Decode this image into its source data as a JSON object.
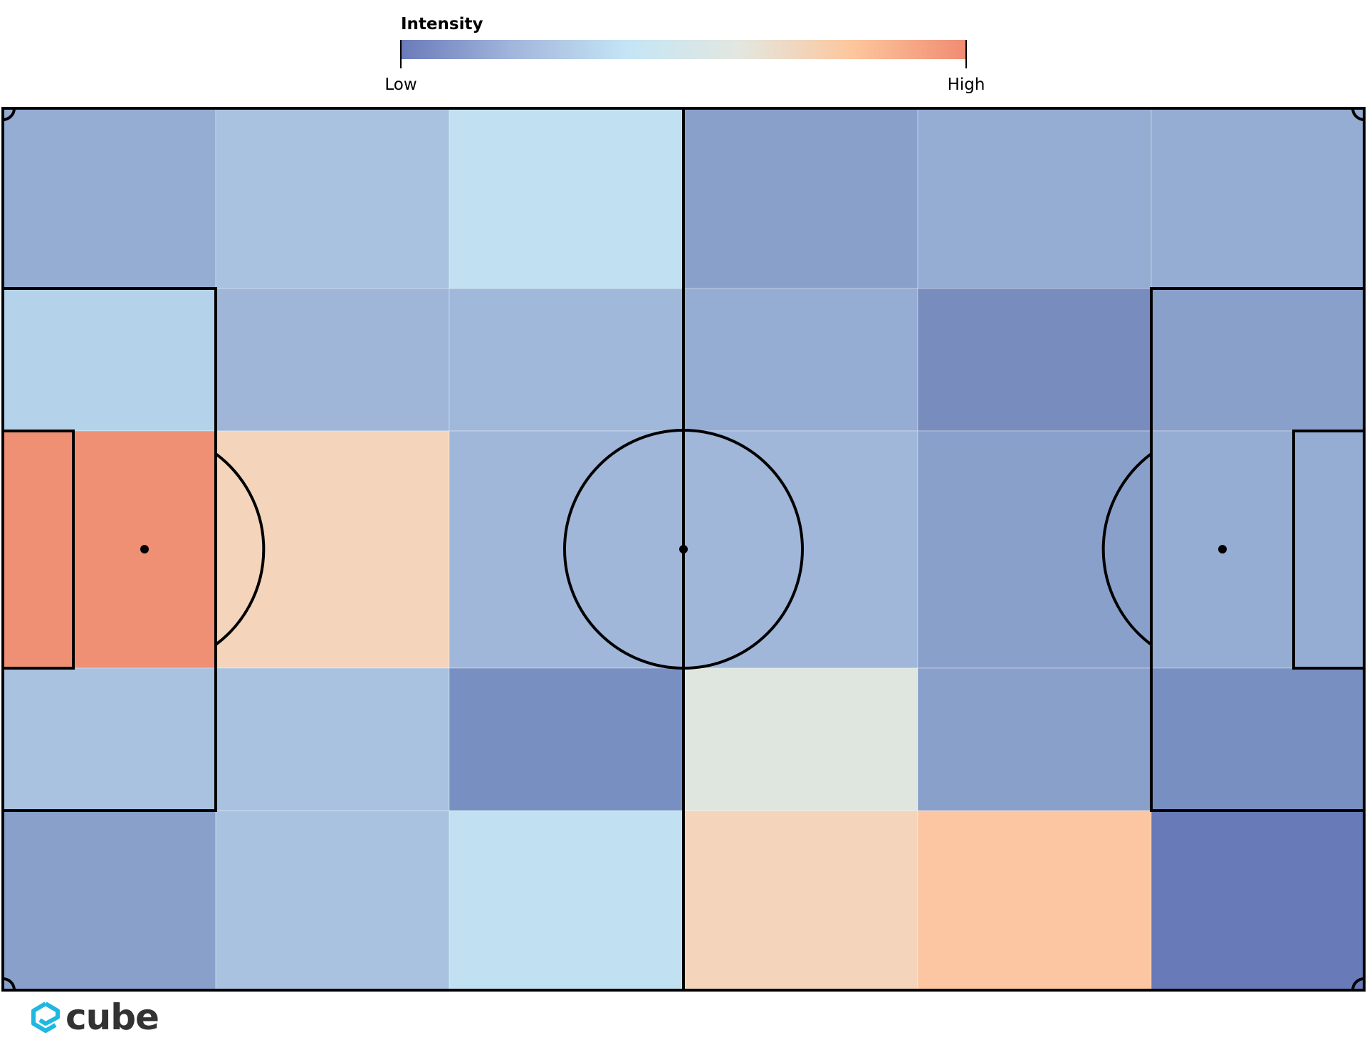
{
  "chart_data": {
    "type": "heatmap",
    "title": "",
    "xlabel": "",
    "ylabel": "",
    "colorbar": {
      "title": "Intensity",
      "low_label": "Low",
      "high_label": "High",
      "stops": [
        "#6a7bba",
        "#a3b6dc",
        "#c4e5f5",
        "#e3e7e0",
        "#fdc69c",
        "#f08c73"
      ]
    },
    "grid": {
      "rows": 5,
      "cols": 6
    },
    "cells": [
      [
        0.25,
        0.33,
        0.42,
        0.2,
        0.25,
        0.25
      ],
      [
        0.37,
        0.29,
        0.29,
        0.25,
        0.12,
        0.19
      ],
      [
        1.0,
        0.7,
        0.29,
        0.29,
        0.19,
        0.25
      ],
      [
        0.33,
        0.33,
        0.12,
        0.55,
        0.19,
        0.12
      ],
      [
        0.19,
        0.33,
        0.42,
        0.7,
        0.78,
        0.0
      ]
    ],
    "cell_colors": [
      [
        "#95acd3",
        "#a8c2e0",
        "#c1e1f2",
        "#89a0cb",
        "#95acd3",
        "#95acd3"
      ],
      [
        "#b4d3ea",
        "#9fb6d9",
        "#a0b8da",
        "#95add3",
        "#788dbe",
        "#89a0cb"
      ],
      [
        "#ef8f73",
        "#f4d5bb",
        "#a0b7da",
        "#a0b7da",
        "#89a0cb",
        "#95acd3"
      ],
      [
        "#a8c2e0",
        "#a8c2e0",
        "#788fc1",
        "#dfe6e0",
        "#89a0cb",
        "#788fc1"
      ],
      [
        "#89a0cb",
        "#a8c2e0",
        "#c1e1f2",
        "#f4d5bb",
        "#fbc6a1",
        "#687bb8"
      ]
    ]
  },
  "brand": {
    "logo_text": "cube",
    "logo_color": "#1fb8e0",
    "text_color": "#333333"
  }
}
